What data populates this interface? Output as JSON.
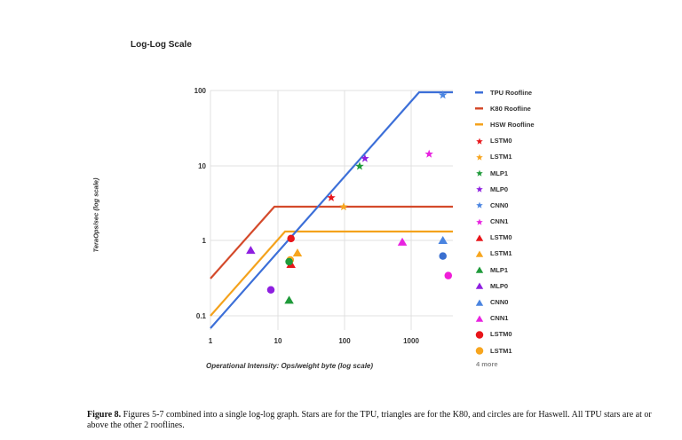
{
  "chart_data": {
    "type": "scatter",
    "title": "Log-Log Scale",
    "xlabel": "Operational Intensity: Ops/weight byte (log scale)",
    "ylabel": "TeraOps/sec (log scale)",
    "xscale": "log",
    "yscale": "log",
    "xlim": [
      1,
      4000
    ],
    "ylim": [
      0.07,
      100
    ],
    "xticks": [
      "1",
      "10",
      "100",
      "1000"
    ],
    "yticks": [
      "0.1",
      "1",
      "10",
      "100"
    ],
    "grid": true,
    "legend_position": "right",
    "lines": [
      {
        "name": "TPU Roofline",
        "color": "#3c6fd8",
        "points": [
          [
            1,
            0.068
          ],
          [
            1350,
            92
          ],
          [
            4000,
            92
          ]
        ]
      },
      {
        "name": "K80 Roofline",
        "color": "#d44a2b",
        "points": [
          [
            1,
            0.31
          ],
          [
            9,
            2.8
          ],
          [
            4000,
            2.8
          ]
        ]
      },
      {
        "name": "HSW Roofline",
        "color": "#f4a21c",
        "points": [
          [
            1,
            0.1
          ],
          [
            13,
            1.3
          ],
          [
            4000,
            1.3
          ]
        ]
      }
    ],
    "series": [
      {
        "name": "LSTM0",
        "marker": "star",
        "platform": "TPU",
        "color": "#e8161b",
        "x": 64,
        "y": 3.7
      },
      {
        "name": "LSTM1",
        "marker": "star",
        "platform": "TPU",
        "color": "#f7a51e",
        "x": 98,
        "y": 2.8
      },
      {
        "name": "MLP1",
        "marker": "star",
        "platform": "TPU",
        "color": "#1f9a3a",
        "x": 170,
        "y": 9.7
      },
      {
        "name": "MLP0",
        "marker": "star",
        "platform": "TPU",
        "color": "#8e1fe0",
        "x": 204,
        "y": 12.3
      },
      {
        "name": "CNN0",
        "marker": "star",
        "platform": "TPU",
        "color": "#4a84e0",
        "x": 2990,
        "y": 86
      },
      {
        "name": "CNN1",
        "marker": "star",
        "platform": "TPU",
        "color": "#e823e0",
        "x": 1860,
        "y": 14.1
      },
      {
        "name": "LSTM0",
        "marker": "triangle",
        "platform": "K80",
        "color": "#e8161b",
        "x": 16,
        "y": 0.48
      },
      {
        "name": "LSTM1",
        "marker": "triangle",
        "platform": "K80",
        "color": "#f7a51e",
        "x": 20,
        "y": 0.68
      },
      {
        "name": "MLP1",
        "marker": "triangle",
        "platform": "K80",
        "color": "#1f9a3a",
        "x": 15,
        "y": 0.16
      },
      {
        "name": "MLP0",
        "marker": "triangle",
        "platform": "K80",
        "color": "#8e1fe0",
        "x": 4,
        "y": 0.74
      },
      {
        "name": "CNN0",
        "marker": "triangle",
        "platform": "K80",
        "color": "#4a84e0",
        "x": 2990,
        "y": 1.0
      },
      {
        "name": "CNN1",
        "marker": "triangle",
        "platform": "K80",
        "color": "#e823e0",
        "x": 740,
        "y": 0.95
      },
      {
        "name": "LSTM0",
        "marker": "circle",
        "platform": "Haswell",
        "color": "#e8161b",
        "x": 16,
        "y": 1.06
      },
      {
        "name": "LSTM1",
        "marker": "circle",
        "platform": "Haswell",
        "color": "#f7a51e",
        "x": 15.6,
        "y": 0.55
      },
      {
        "name": "MLP1",
        "marker": "circle",
        "platform": "Haswell",
        "color": "#1f9a3a",
        "x": 15,
        "y": 0.52
      },
      {
        "name": "MLP0",
        "marker": "circle",
        "platform": "Haswell",
        "color": "#8e1fe0",
        "x": 8,
        "y": 0.22
      },
      {
        "name": "CNN0",
        "marker": "circle",
        "platform": "Haswell",
        "color": "#3a6fd0",
        "x": 2990,
        "y": 0.62
      },
      {
        "name": "CNN1",
        "marker": "circle",
        "platform": "Haswell",
        "color": "#f01ed8",
        "x": 3600,
        "y": 0.34
      }
    ]
  },
  "chart": {
    "title": "Log-Log Scale",
    "xlabel": "Operational Intensity: Ops/weight byte (log scale)",
    "ylabel": "TeraOps/sec (log scale)",
    "xticks": [
      "1",
      "10",
      "100",
      "1000"
    ],
    "yticks": [
      "100",
      "10",
      "1",
      "0.1"
    ]
  },
  "legend": {
    "items": [
      {
        "label": "TPU Roofline",
        "shape": "line",
        "color": "#3c6fd8"
      },
      {
        "label": "K80 Roofline",
        "shape": "line",
        "color": "#d44a2b"
      },
      {
        "label": "HSW Roofline",
        "shape": "line",
        "color": "#f4a21c"
      },
      {
        "label": "LSTM0",
        "shape": "star",
        "color": "#e8161b"
      },
      {
        "label": "LSTM1",
        "shape": "star",
        "color": "#f7a51e"
      },
      {
        "label": "MLP1",
        "shape": "star",
        "color": "#1f9a3a"
      },
      {
        "label": "MLP0",
        "shape": "star",
        "color": "#8e1fe0"
      },
      {
        "label": "CNN0",
        "shape": "star",
        "color": "#4a84e0"
      },
      {
        "label": "CNN1",
        "shape": "star",
        "color": "#e823e0"
      },
      {
        "label": "LSTM0",
        "shape": "triangle",
        "color": "#e8161b"
      },
      {
        "label": "LSTM1",
        "shape": "triangle",
        "color": "#f7a51e"
      },
      {
        "label": "MLP1",
        "shape": "triangle",
        "color": "#1f9a3a"
      },
      {
        "label": "MLP0",
        "shape": "triangle",
        "color": "#8e1fe0"
      },
      {
        "label": "CNN0",
        "shape": "triangle",
        "color": "#4a84e0"
      },
      {
        "label": "CNN1",
        "shape": "triangle",
        "color": "#e823e0"
      },
      {
        "label": "LSTM0",
        "shape": "circle",
        "color": "#e8161b"
      },
      {
        "label": "LSTM1",
        "shape": "circle",
        "color": "#f7a51e"
      }
    ],
    "more": "4 more"
  },
  "caption": {
    "label": "Figure 8.",
    "text": " Figures 5-7 combined into a single log-log graph. Stars are for the TPU, triangles are for the K80, and circles are for Haswell. All TPU stars are at or above the other 2 rooflines."
  }
}
